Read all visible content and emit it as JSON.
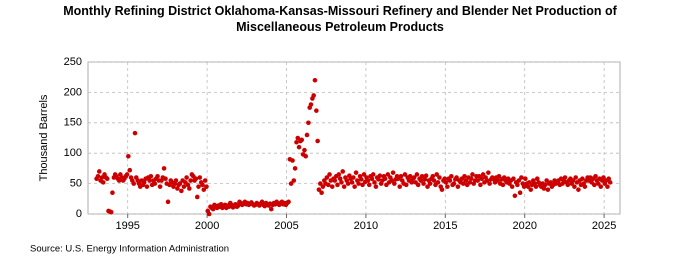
{
  "chart_data": {
    "type": "scatter",
    "title": "Monthly Refining District Oklahoma-Kansas-Missouri Refinery and Blender Net Production of Miscellaneous Petroleum Products",
    "ylabel": "Thousand Barrels",
    "source": "Source: U.S. Energy Information Administration",
    "color": "#cc0000",
    "grid": true,
    "xlim": [
      1992.5,
      2026
    ],
    "xticks": [
      1995,
      2000,
      2005,
      2010,
      2015,
      2020,
      2025
    ],
    "ylim": [
      0,
      250
    ],
    "yticks": [
      0,
      50,
      100,
      150,
      200,
      250
    ],
    "x": [
      1993.04,
      1993.13,
      1993.21,
      1993.29,
      1993.38,
      1993.46,
      1993.54,
      1993.63,
      1993.71,
      1993.79,
      1993.88,
      1993.96,
      1994.04,
      1994.13,
      1994.21,
      1994.29,
      1994.38,
      1994.46,
      1994.54,
      1994.63,
      1994.71,
      1994.79,
      1994.88,
      1994.96,
      1995.04,
      1995.13,
      1995.21,
      1995.29,
      1995.38,
      1995.46,
      1995.54,
      1995.63,
      1995.71,
      1995.79,
      1995.88,
      1995.96,
      1996.04,
      1996.13,
      1996.21,
      1996.29,
      1996.38,
      1996.46,
      1996.54,
      1996.63,
      1996.71,
      1996.79,
      1996.88,
      1996.96,
      1997.04,
      1997.13,
      1997.21,
      1997.29,
      1997.38,
      1997.46,
      1997.54,
      1997.63,
      1997.71,
      1997.79,
      1997.88,
      1997.96,
      1998.04,
      1998.13,
      1998.21,
      1998.29,
      1998.38,
      1998.46,
      1998.54,
      1998.63,
      1998.71,
      1998.79,
      1998.88,
      1998.96,
      1999.04,
      1999.13,
      1999.21,
      1999.29,
      1999.38,
      1999.46,
      1999.54,
      1999.63,
      1999.71,
      1999.79,
      1999.88,
      1999.96,
      2000.04,
      2000.13,
      2000.21,
      2000.29,
      2000.38,
      2000.46,
      2000.54,
      2000.63,
      2000.71,
      2000.79,
      2000.88,
      2000.96,
      2001.04,
      2001.13,
      2001.21,
      2001.29,
      2001.38,
      2001.46,
      2001.54,
      2001.63,
      2001.71,
      2001.79,
      2001.88,
      2001.96,
      2002.04,
      2002.13,
      2002.21,
      2002.29,
      2002.38,
      2002.46,
      2002.54,
      2002.63,
      2002.71,
      2002.79,
      2002.88,
      2002.96,
      2003.04,
      2003.13,
      2003.21,
      2003.29,
      2003.38,
      2003.46,
      2003.54,
      2003.63,
      2003.71,
      2003.79,
      2003.88,
      2003.96,
      2004.04,
      2004.13,
      2004.21,
      2004.29,
      2004.38,
      2004.46,
      2004.54,
      2004.63,
      2004.71,
      2004.79,
      2004.88,
      2004.96,
      2005.04,
      2005.13,
      2005.21,
      2005.29,
      2005.38,
      2005.46,
      2005.54,
      2005.63,
      2005.71,
      2005.79,
      2005.88,
      2005.96,
      2006.04,
      2006.13,
      2006.21,
      2006.29,
      2006.38,
      2006.46,
      2006.54,
      2006.63,
      2006.71,
      2006.79,
      2006.88,
      2006.96,
      2007.04,
      2007.13,
      2007.21,
      2007.29,
      2007.38,
      2007.46,
      2007.54,
      2007.63,
      2007.71,
      2007.79,
      2007.88,
      2007.96,
      2008.04,
      2008.13,
      2008.21,
      2008.29,
      2008.38,
      2008.46,
      2008.54,
      2008.63,
      2008.71,
      2008.79,
      2008.88,
      2008.96,
      2009.04,
      2009.13,
      2009.21,
      2009.29,
      2009.38,
      2009.46,
      2009.54,
      2009.63,
      2009.71,
      2009.79,
      2009.88,
      2009.96,
      2010.04,
      2010.13,
      2010.21,
      2010.29,
      2010.38,
      2010.46,
      2010.54,
      2010.63,
      2010.71,
      2010.79,
      2010.88,
      2010.96,
      2011.04,
      2011.13,
      2011.21,
      2011.29,
      2011.38,
      2011.46,
      2011.54,
      2011.63,
      2011.71,
      2011.79,
      2011.88,
      2011.96,
      2012.04,
      2012.13,
      2012.21,
      2012.29,
      2012.38,
      2012.46,
      2012.54,
      2012.63,
      2012.71,
      2012.79,
      2012.88,
      2012.96,
      2013.04,
      2013.13,
      2013.21,
      2013.29,
      2013.38,
      2013.46,
      2013.54,
      2013.63,
      2013.71,
      2013.79,
      2013.88,
      2013.96,
      2014.04,
      2014.13,
      2014.21,
      2014.29,
      2014.38,
      2014.46,
      2014.54,
      2014.63,
      2014.71,
      2014.79,
      2014.88,
      2014.96,
      2015.04,
      2015.13,
      2015.21,
      2015.29,
      2015.38,
      2015.46,
      2015.54,
      2015.63,
      2015.71,
      2015.79,
      2015.88,
      2015.96,
      2016.04,
      2016.13,
      2016.21,
      2016.29,
      2016.38,
      2016.46,
      2016.54,
      2016.63,
      2016.71,
      2016.79,
      2016.88,
      2016.96,
      2017.04,
      2017.13,
      2017.21,
      2017.29,
      2017.38,
      2017.46,
      2017.54,
      2017.63,
      2017.71,
      2017.79,
      2017.88,
      2017.96,
      2018.04,
      2018.13,
      2018.21,
      2018.29,
      2018.38,
      2018.46,
      2018.54,
      2018.63,
      2018.71,
      2018.79,
      2018.88,
      2018.96,
      2019.04,
      2019.13,
      2019.21,
      2019.29,
      2019.38,
      2019.46,
      2019.54,
      2019.63,
      2019.71,
      2019.79,
      2019.88,
      2019.96,
      2020.04,
      2020.13,
      2020.21,
      2020.29,
      2020.38,
      2020.46,
      2020.54,
      2020.63,
      2020.71,
      2020.79,
      2020.88,
      2020.96,
      2021.04,
      2021.13,
      2021.21,
      2021.29,
      2021.38,
      2021.46,
      2021.54,
      2021.63,
      2021.71,
      2021.79,
      2021.88,
      2021.96,
      2022.04,
      2022.13,
      2022.21,
      2022.29,
      2022.38,
      2022.46,
      2022.54,
      2022.63,
      2022.71,
      2022.79,
      2022.88,
      2022.96,
      2023.04,
      2023.13,
      2023.21,
      2023.29,
      2023.38,
      2023.46,
      2023.54,
      2023.63,
      2023.71,
      2023.79,
      2023.88,
      2023.96,
      2024.04,
      2024.13,
      2024.21,
      2024.29,
      2024.38,
      2024.46,
      2024.54,
      2024.63,
      2024.71,
      2024.79,
      2024.88,
      2024.96,
      2025.04,
      2025.13,
      2025.21,
      2025.29,
      2025.38
    ],
    "values": [
      58,
      62,
      70,
      55,
      60,
      52,
      65,
      60,
      58,
      5,
      4,
      3,
      35,
      60,
      65,
      62,
      58,
      55,
      65,
      60,
      55,
      58,
      62,
      65,
      95,
      72,
      60,
      55,
      50,
      133,
      60,
      55,
      50,
      45,
      55,
      48,
      52,
      58,
      45,
      60,
      55,
      62,
      48,
      55,
      50,
      58,
      62,
      55,
      45,
      55,
      60,
      75,
      58,
      50,
      20,
      48,
      55,
      52,
      45,
      50,
      55,
      42,
      48,
      50,
      38,
      55,
      45,
      52,
      60,
      48,
      42,
      55,
      65,
      62,
      55,
      58,
      28,
      45,
      60,
      52,
      48,
      40,
      55,
      45,
      5,
      0,
      12,
      10,
      8,
      15,
      12,
      10,
      14,
      12,
      16,
      10,
      12,
      15,
      10,
      14,
      12,
      18,
      15,
      11,
      13,
      16,
      12,
      14,
      20,
      18,
      15,
      17,
      20,
      16,
      18,
      15,
      17,
      19,
      16,
      14,
      15,
      18,
      16,
      14,
      17,
      20,
      15,
      13,
      18,
      16,
      14,
      17,
      8,
      15,
      18,
      16,
      20,
      17,
      15,
      18,
      20,
      16,
      18,
      15,
      18,
      20,
      90,
      50,
      88,
      55,
      75,
      118,
      125,
      110,
      120,
      122,
      98,
      105,
      95,
      130,
      150,
      175,
      180,
      190,
      195,
      220,
      170,
      120,
      40,
      50,
      35,
      45,
      55,
      50,
      60,
      48,
      65,
      55,
      45,
      58,
      55,
      62,
      48,
      65,
      58,
      52,
      70,
      45,
      60,
      55,
      50,
      63,
      58,
      52,
      60,
      45,
      68,
      55,
      50,
      62,
      57,
      48,
      65,
      53,
      60,
      55,
      48,
      62,
      58,
      65,
      52,
      45,
      60,
      57,
      63,
      50,
      55,
      62,
      58,
      48,
      65,
      52,
      60,
      55,
      68,
      50,
      57,
      62,
      58,
      45,
      62,
      55,
      50,
      65,
      48,
      60,
      55,
      62,
      52,
      58,
      60,
      52,
      65,
      48,
      58,
      55,
      62,
      50,
      57,
      63,
      45,
      55,
      50,
      58,
      62,
      55,
      48,
      65,
      52,
      60,
      45,
      40,
      55,
      58,
      52,
      45,
      58,
      55,
      62,
      48,
      50,
      57,
      60,
      45,
      55,
      52,
      58,
      50,
      62,
      55,
      48,
      60,
      52,
      58,
      65,
      50,
      55,
      62,
      55,
      62,
      48,
      58,
      65,
      52,
      60,
      55,
      68,
      50,
      57,
      60,
      58,
      52,
      60,
      55,
      62,
      50,
      57,
      48,
      60,
      55,
      52,
      58,
      50,
      55,
      45,
      58,
      30,
      52,
      48,
      55,
      35,
      60,
      50,
      45,
      58,
      50,
      45,
      52,
      40,
      48,
      55,
      50,
      45,
      58,
      52,
      48,
      45,
      50,
      42,
      48,
      55,
      40,
      50,
      52,
      45,
      48,
      55,
      50,
      52,
      55,
      48,
      58,
      50,
      55,
      60,
      52,
      48,
      55,
      58,
      50,
      55,
      45,
      60,
      52,
      40,
      55,
      48,
      58,
      50,
      45,
      55,
      60,
      55,
      60,
      52,
      58,
      48,
      62,
      55,
      50,
      58,
      45,
      55,
      60,
      50,
      55,
      45,
      58,
      52
    ]
  }
}
